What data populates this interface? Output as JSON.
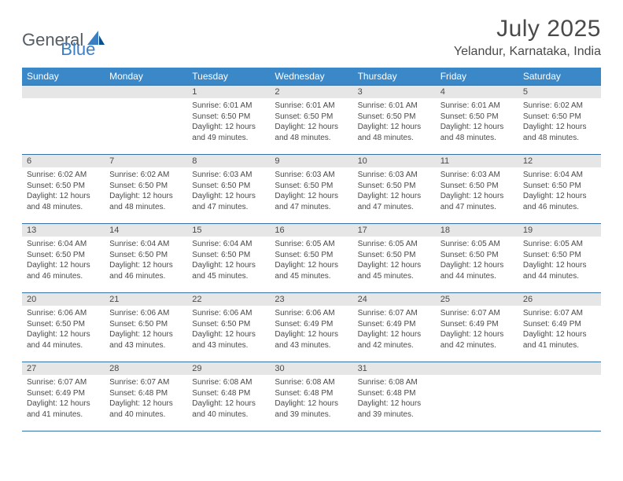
{
  "logo": {
    "text1": "General",
    "text2": "Blue"
  },
  "header": {
    "title": "July 2025",
    "location": "Yelandur, Karnataka, India"
  },
  "style": {
    "header_bg": "#3b88c9",
    "header_text": "#ffffff",
    "border_color": "#3570a8",
    "daynum_bg": "#e6e6e6",
    "text_color": "#4a4a4a",
    "logo_blue": "#3a7fc4",
    "logo_gray": "#555c63"
  },
  "weekdays": [
    "Sunday",
    "Monday",
    "Tuesday",
    "Wednesday",
    "Thursday",
    "Friday",
    "Saturday"
  ],
  "labels": {
    "sunrise": "Sunrise:",
    "sunset": "Sunset:",
    "daylight": "Daylight:"
  },
  "weeks": [
    [
      null,
      null,
      {
        "n": "1",
        "sr": "6:01 AM",
        "ss": "6:50 PM",
        "dl": "12 hours and 49 minutes."
      },
      {
        "n": "2",
        "sr": "6:01 AM",
        "ss": "6:50 PM",
        "dl": "12 hours and 48 minutes."
      },
      {
        "n": "3",
        "sr": "6:01 AM",
        "ss": "6:50 PM",
        "dl": "12 hours and 48 minutes."
      },
      {
        "n": "4",
        "sr": "6:01 AM",
        "ss": "6:50 PM",
        "dl": "12 hours and 48 minutes."
      },
      {
        "n": "5",
        "sr": "6:02 AM",
        "ss": "6:50 PM",
        "dl": "12 hours and 48 minutes."
      }
    ],
    [
      {
        "n": "6",
        "sr": "6:02 AM",
        "ss": "6:50 PM",
        "dl": "12 hours and 48 minutes."
      },
      {
        "n": "7",
        "sr": "6:02 AM",
        "ss": "6:50 PM",
        "dl": "12 hours and 48 minutes."
      },
      {
        "n": "8",
        "sr": "6:03 AM",
        "ss": "6:50 PM",
        "dl": "12 hours and 47 minutes."
      },
      {
        "n": "9",
        "sr": "6:03 AM",
        "ss": "6:50 PM",
        "dl": "12 hours and 47 minutes."
      },
      {
        "n": "10",
        "sr": "6:03 AM",
        "ss": "6:50 PM",
        "dl": "12 hours and 47 minutes."
      },
      {
        "n": "11",
        "sr": "6:03 AM",
        "ss": "6:50 PM",
        "dl": "12 hours and 47 minutes."
      },
      {
        "n": "12",
        "sr": "6:04 AM",
        "ss": "6:50 PM",
        "dl": "12 hours and 46 minutes."
      }
    ],
    [
      {
        "n": "13",
        "sr": "6:04 AM",
        "ss": "6:50 PM",
        "dl": "12 hours and 46 minutes."
      },
      {
        "n": "14",
        "sr": "6:04 AM",
        "ss": "6:50 PM",
        "dl": "12 hours and 46 minutes."
      },
      {
        "n": "15",
        "sr": "6:04 AM",
        "ss": "6:50 PM",
        "dl": "12 hours and 45 minutes."
      },
      {
        "n": "16",
        "sr": "6:05 AM",
        "ss": "6:50 PM",
        "dl": "12 hours and 45 minutes."
      },
      {
        "n": "17",
        "sr": "6:05 AM",
        "ss": "6:50 PM",
        "dl": "12 hours and 45 minutes."
      },
      {
        "n": "18",
        "sr": "6:05 AM",
        "ss": "6:50 PM",
        "dl": "12 hours and 44 minutes."
      },
      {
        "n": "19",
        "sr": "6:05 AM",
        "ss": "6:50 PM",
        "dl": "12 hours and 44 minutes."
      }
    ],
    [
      {
        "n": "20",
        "sr": "6:06 AM",
        "ss": "6:50 PM",
        "dl": "12 hours and 44 minutes."
      },
      {
        "n": "21",
        "sr": "6:06 AM",
        "ss": "6:50 PM",
        "dl": "12 hours and 43 minutes."
      },
      {
        "n": "22",
        "sr": "6:06 AM",
        "ss": "6:50 PM",
        "dl": "12 hours and 43 minutes."
      },
      {
        "n": "23",
        "sr": "6:06 AM",
        "ss": "6:49 PM",
        "dl": "12 hours and 43 minutes."
      },
      {
        "n": "24",
        "sr": "6:07 AM",
        "ss": "6:49 PM",
        "dl": "12 hours and 42 minutes."
      },
      {
        "n": "25",
        "sr": "6:07 AM",
        "ss": "6:49 PM",
        "dl": "12 hours and 42 minutes."
      },
      {
        "n": "26",
        "sr": "6:07 AM",
        "ss": "6:49 PM",
        "dl": "12 hours and 41 minutes."
      }
    ],
    [
      {
        "n": "27",
        "sr": "6:07 AM",
        "ss": "6:49 PM",
        "dl": "12 hours and 41 minutes."
      },
      {
        "n": "28",
        "sr": "6:07 AM",
        "ss": "6:48 PM",
        "dl": "12 hours and 40 minutes."
      },
      {
        "n": "29",
        "sr": "6:08 AM",
        "ss": "6:48 PM",
        "dl": "12 hours and 40 minutes."
      },
      {
        "n": "30",
        "sr": "6:08 AM",
        "ss": "6:48 PM",
        "dl": "12 hours and 39 minutes."
      },
      {
        "n": "31",
        "sr": "6:08 AM",
        "ss": "6:48 PM",
        "dl": "12 hours and 39 minutes."
      },
      null,
      null
    ]
  ]
}
